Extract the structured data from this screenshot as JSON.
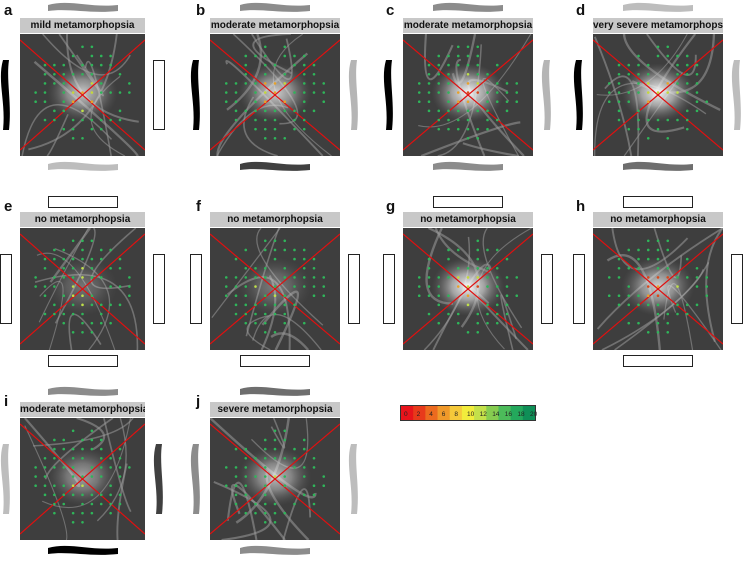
{
  "panels": [
    {
      "letter": "a",
      "label": "mild metamorphopsia",
      "top_band": "#8c8c8c",
      "bottom_band": "#bdbdbd",
      "left_band": "#000000",
      "right_band": "#ffffff",
      "blob": 0.75,
      "shape_top": "wave",
      "shape_bottom": "wave",
      "shape_left": "wave",
      "shape_right": "rect"
    },
    {
      "letter": "b",
      "label": "moderate metamorphopsia",
      "top_band": "#8c8c8c",
      "bottom_band": "#404040",
      "left_band": "#000000",
      "right_band": "#b5b5b5",
      "blob": 0.8,
      "shape_top": "wave",
      "shape_bottom": "wave",
      "shape_left": "wave",
      "shape_right": "wave"
    },
    {
      "letter": "c",
      "label": "moderate metamorphopsia",
      "top_band": "#8c8c8c",
      "bottom_band": "#8c8c8c",
      "left_band": "#000000",
      "right_band": "#b5b5b5",
      "blob": 1.0,
      "shape_top": "wave",
      "shape_bottom": "wave",
      "shape_left": "wave",
      "shape_right": "wave"
    },
    {
      "letter": "d",
      "label": "very severe metamorphopsia",
      "top_band": "#bdbdbd",
      "bottom_band": "#6e6e6e",
      "left_band": "#000000",
      "right_band": "#bdbdbd",
      "blob": 1.0,
      "shape_top": "wave",
      "shape_bottom": "wave",
      "shape_left": "wave",
      "shape_right": "wave"
    },
    {
      "letter": "e",
      "label": "no metamorphopsia",
      "top_band": "#ffffff",
      "bottom_band": "#ffffff",
      "left_band": "#ffffff",
      "right_band": "#ffffff",
      "blob": 0.3,
      "shape_top": "rect",
      "shape_bottom": "rect",
      "shape_left": "rect",
      "shape_right": "rect"
    },
    {
      "letter": "f",
      "label": "no metamorphopsia",
      "top_band": "#ffffff",
      "bottom_band": "#ffffff",
      "left_band": "#ffffff",
      "right_band": "#ffffff",
      "blob": 0.35,
      "shape_top": "none",
      "shape_bottom": "rect",
      "shape_left": "rect",
      "shape_right": "rect"
    },
    {
      "letter": "g",
      "label": "no metamorphopsia",
      "top_band": "#ffffff",
      "bottom_band": "#ffffff",
      "left_band": "#ffffff",
      "right_band": "#ffffff",
      "blob": 1.0,
      "shape_top": "rect",
      "shape_bottom": "none",
      "shape_left": "rect",
      "shape_right": "rect"
    },
    {
      "letter": "h",
      "label": "no metamorphopsia",
      "top_band": "#ffffff",
      "bottom_band": "#ffffff",
      "left_band": "#ffffff",
      "right_band": "#ffffff",
      "blob": 0.8,
      "shape_top": "rect",
      "shape_bottom": "rect",
      "shape_left": "rect",
      "shape_right": "rect"
    },
    {
      "letter": "i",
      "label": "moderate metamorphopsia",
      "top_band": "#8c8c8c",
      "bottom_band": "#000000",
      "left_band": "#bdbdbd",
      "right_band": "#404040",
      "blob": 0.55,
      "shape_top": "wave",
      "shape_bottom": "wave",
      "shape_left": "wave",
      "shape_right": "wave"
    },
    {
      "letter": "j",
      "label": "severe metamorphopsia",
      "top_band": "#6e6e6e",
      "bottom_band": "#8c8c8c",
      "left_band": "#8c8c8c",
      "right_band": "#bdbdbd",
      "blob": 0.7,
      "shape_top": "wave",
      "shape_bottom": "wave",
      "shape_left": "wave",
      "shape_right": "wave"
    }
  ],
  "colorbar": {
    "ticks": [
      "0",
      "2",
      "4",
      "6",
      "8",
      "10",
      "12",
      "14",
      "16",
      "18",
      "20"
    ],
    "colors": [
      "#e8141b",
      "#e83a1b",
      "#ec6a1f",
      "#f0992a",
      "#f5c93a",
      "#f2ec3c",
      "#c4e04a",
      "#86cc50",
      "#4cbb5a",
      "#24a85c",
      "#0f8f57"
    ]
  }
}
